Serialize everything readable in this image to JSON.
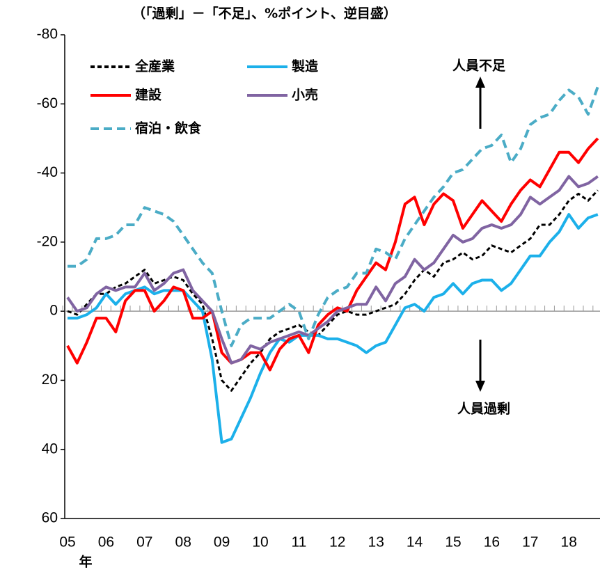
{
  "chart_data": {
    "type": "line",
    "subtitle": "（「過剰」－「不足」、%ポイント、逆目盛）",
    "x_label": "年",
    "annotations": [
      "人員不足",
      "人員過剰"
    ],
    "categories": [
      "05",
      null,
      null,
      null,
      "06",
      null,
      null,
      null,
      "07",
      null,
      null,
      null,
      "08",
      null,
      null,
      null,
      "09",
      null,
      null,
      null,
      "10",
      null,
      null,
      null,
      "11",
      null,
      null,
      null,
      "12",
      null,
      null,
      null,
      "13",
      null,
      null,
      null,
      "14",
      null,
      null,
      null,
      "15",
      null,
      null,
      null,
      "16",
      null,
      null,
      null,
      "17",
      null,
      null,
      null,
      "18",
      null,
      null,
      null
    ],
    "series": [
      {
        "name": "全産業",
        "color": "#000000",
        "style": "dashed",
        "values": [
          0,
          1,
          -2,
          -5,
          -5,
          -7,
          -8,
          -10,
          -12,
          -8,
          -9,
          -10,
          -9,
          -5,
          -2,
          8,
          20,
          23,
          19,
          15,
          12,
          8,
          6,
          5,
          4,
          6,
          7,
          4,
          1,
          0,
          1,
          1,
          0,
          -1,
          -2,
          -5,
          -9,
          -12,
          -10,
          -14,
          -15,
          -17,
          -15,
          -16,
          -19,
          -18,
          -17,
          -19,
          -21,
          -25,
          -25,
          -28,
          -32,
          -34,
          -32,
          -35
        ]
      },
      {
        "name": "製造",
        "color": "#1cb0ea",
        "style": "solid",
        "values": [
          2,
          2,
          1,
          -1,
          -5,
          -2,
          -5,
          -6,
          -7,
          -5,
          -6,
          -6,
          -6,
          -3,
          0,
          14,
          38,
          37,
          31,
          25,
          18,
          12,
          8,
          9,
          7,
          7,
          7,
          8,
          8,
          9,
          10,
          12,
          10,
          9,
          4,
          -1,
          -2,
          0,
          -4,
          -5,
          -8,
          -5,
          -8,
          -9,
          -9,
          -6,
          -8,
          -12,
          -16,
          -16,
          -20,
          -23,
          -28,
          -24,
          -27,
          -28
        ]
      },
      {
        "name": "建設",
        "color": "#ff0000",
        "style": "solid",
        "values": [
          10,
          15,
          9,
          2,
          2,
          6,
          -3,
          -6,
          -6,
          0,
          -3,
          -7,
          -6,
          2,
          2,
          0,
          12,
          15,
          14,
          12,
          12,
          17,
          11,
          8,
          7,
          12,
          4,
          1,
          -1,
          0,
          -6,
          -10,
          -14,
          -12,
          -20,
          -31,
          -33,
          -25,
          -31,
          -34,
          -32,
          -24,
          -28,
          -32,
          -29,
          -26,
          -31,
          -35,
          -38,
          -36,
          -41,
          -46,
          -46,
          -43,
          -47,
          -50
        ]
      },
      {
        "name": "小売",
        "color": "#8064a2",
        "style": "solid",
        "values": [
          -4,
          0,
          -1,
          -5,
          -7,
          -6,
          -7,
          -7,
          -11,
          -6,
          -8,
          -11,
          -12,
          -6,
          -3,
          0,
          8,
          15,
          14,
          10,
          11,
          9,
          8,
          7,
          6,
          7,
          5,
          3,
          0,
          -1,
          -2,
          -2,
          -7,
          -3,
          -8,
          -10,
          -15,
          -12,
          -14,
          -18,
          -22,
          -20,
          -21,
          -24,
          -25,
          -24,
          -25,
          -28,
          -33,
          -31,
          -33,
          -35,
          -39,
          -36,
          -37,
          -39
        ]
      },
      {
        "name": "宿泊・飲食",
        "color": "#4bacc6",
        "style": "dashed",
        "values": [
          -13,
          -13,
          -15,
          -21,
          -21,
          -22,
          -25,
          -25,
          -30,
          -29,
          -28,
          -26,
          -22,
          -18,
          -14,
          -11,
          0,
          10,
          4,
          2,
          2,
          2,
          0,
          -2,
          0,
          8,
          1,
          -4,
          -6,
          -7,
          -11,
          -11,
          -18,
          -17,
          -15,
          -21,
          -25,
          -29,
          -33,
          -36,
          -40,
          -41,
          -44,
          -47,
          -48,
          -51,
          -43,
          -47,
          -54,
          -56,
          -57,
          -61,
          -64,
          -62,
          -57,
          -65
        ]
      }
    ],
    "ylim": [
      -80,
      60
    ],
    "y_inverted": true,
    "yticks": [
      -80,
      -60,
      -40,
      -20,
      0,
      20,
      40,
      60
    ]
  }
}
